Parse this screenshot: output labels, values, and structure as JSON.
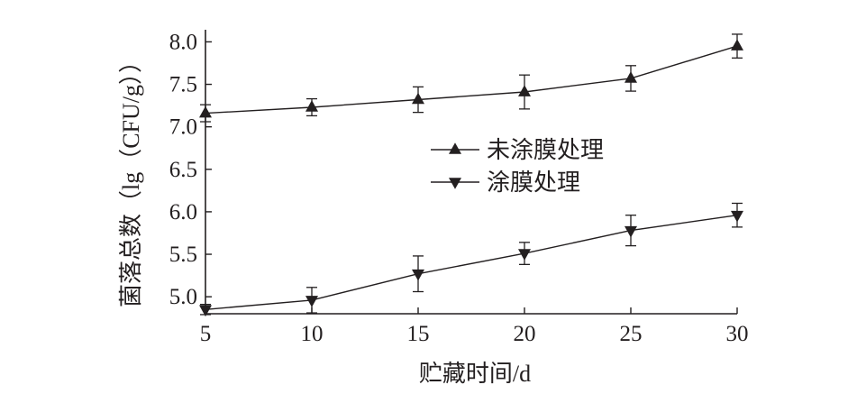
{
  "chart_data": {
    "type": "line",
    "title": "",
    "xlabel": "贮藏时间/d",
    "ylabel": "菌落总数（lg（CFU/g））",
    "x": [
      5,
      10,
      15,
      20,
      25,
      30
    ],
    "xlim": [
      5,
      30
    ],
    "ylim": [
      4.8,
      8.1
    ],
    "x_ticks": [
      "5",
      "10",
      "15",
      "20",
      "25",
      "30"
    ],
    "y_ticks": [
      "5.0",
      "5.5",
      "6.0",
      "6.5",
      "7.0",
      "7.5",
      "8.0"
    ],
    "grid": false,
    "legend_position": "center",
    "series": [
      {
        "name": "未涂膜处理",
        "marker": "triangle-up",
        "values": [
          7.16,
          7.23,
          7.32,
          7.41,
          7.57,
          7.95
        ],
        "error": [
          0.1,
          0.1,
          0.15,
          0.2,
          0.15,
          0.14
        ]
      },
      {
        "name": "涂膜处理",
        "marker": "triangle-down",
        "values": [
          4.85,
          4.96,
          5.27,
          5.51,
          5.78,
          5.96
        ],
        "error": [
          0.06,
          0.15,
          0.21,
          0.13,
          0.18,
          0.14
        ]
      }
    ],
    "color": "#231f20"
  }
}
